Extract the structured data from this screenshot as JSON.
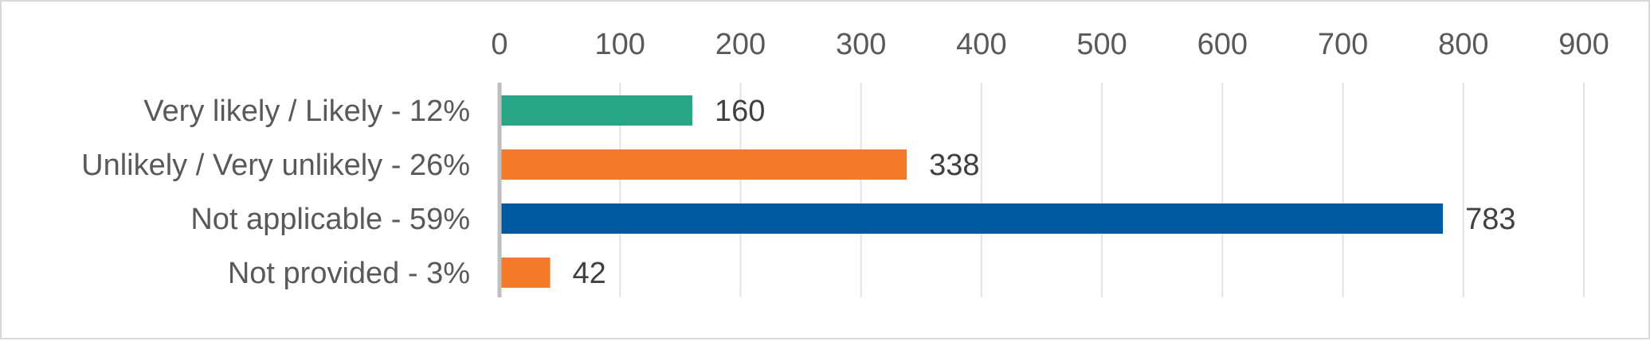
{
  "chart_data": {
    "type": "bar",
    "orientation": "horizontal",
    "categories": [
      "Very likely / Likely - 12%",
      "Unlikely / Very unlikely - 26%",
      "Not applicable - 59%",
      "Not provided - 3%"
    ],
    "values": [
      160,
      338,
      783,
      42
    ],
    "bar_colors": [
      "#26a587",
      "#f47a28",
      "#0059a1",
      "#f47a28"
    ],
    "xlim": [
      0,
      900
    ],
    "x_ticks": [
      0,
      100,
      200,
      300,
      400,
      500,
      600,
      700,
      800,
      900
    ],
    "x_axis_position": "top",
    "grid": true,
    "data_labels": true,
    "title": "",
    "xlabel": "",
    "ylabel": "",
    "legend": "none"
  }
}
